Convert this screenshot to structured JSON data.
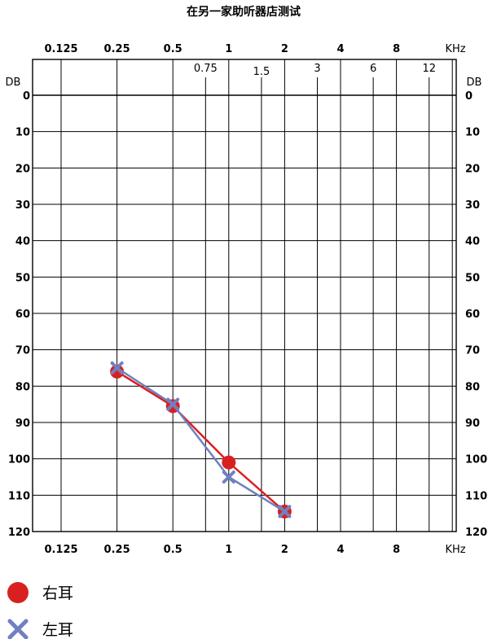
{
  "chart_data": {
    "type": "line",
    "title": "在另一家助听器店测试",
    "x_unit": "KHz",
    "y_unit": "DB",
    "x_major_ticks": [
      "0.125",
      "0.25",
      "0.5",
      "1",
      "2",
      "4",
      "8"
    ],
    "x_minor_ticks": [
      "0.75",
      "1.5",
      "3",
      "6",
      "12"
    ],
    "x_bottom_ticks": [
      "0.125",
      "0.25",
      "0.5",
      "1",
      "2",
      "4",
      "8"
    ],
    "y_ticks": [
      0,
      10,
      20,
      30,
      40,
      50,
      60,
      70,
      80,
      90,
      100,
      110,
      120
    ],
    "ylim": [
      0,
      120
    ],
    "y_inverted": true,
    "x_scale": "log2",
    "grid": true,
    "series": [
      {
        "name": "右耳",
        "color": "#d92020",
        "marker": "circle",
        "x": [
          0.25,
          0.5,
          1,
          2
        ],
        "y": [
          76,
          85.5,
          101,
          114.5
        ]
      },
      {
        "name": "左耳",
        "color": "#7080c0",
        "marker": "x",
        "x": [
          0.25,
          0.5,
          1,
          2
        ],
        "y": [
          75,
          85,
          105,
          114.5
        ]
      }
    ],
    "legend": [
      {
        "label": "右耳",
        "marker": "circle",
        "color": "#d92020"
      },
      {
        "label": "左耳",
        "marker": "x",
        "color": "#7080c0"
      }
    ],
    "legend_position": "bottom-left"
  }
}
